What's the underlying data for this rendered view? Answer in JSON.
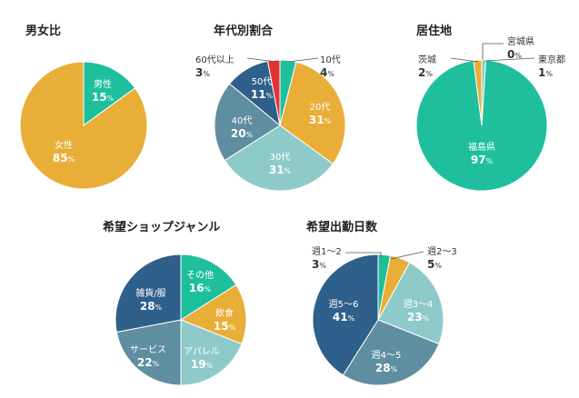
{
  "chart_data": [
    {
      "type": "pie",
      "title": "男女比",
      "slices": [
        {
          "label": "男性",
          "value": 15,
          "color": "#1fbf9d"
        },
        {
          "label": "女性",
          "value": 85,
          "color": "#e9ae38"
        }
      ]
    },
    {
      "type": "pie",
      "title": "年代別割合",
      "slices": [
        {
          "label": "10代",
          "value": 4,
          "color": "#1fbf9d"
        },
        {
          "label": "20代",
          "value": 31,
          "color": "#e9ae38"
        },
        {
          "label": "30代",
          "value": 31,
          "color": "#8fcaca"
        },
        {
          "label": "40代",
          "value": 20,
          "color": "#5f8ea0"
        },
        {
          "label": "50代",
          "value": 11,
          "color": "#2f5f8b"
        },
        {
          "label": "60代以上",
          "value": 3,
          "color": "#e33434"
        }
      ]
    },
    {
      "type": "pie",
      "title": "居住地",
      "slices": [
        {
          "label": "宮城県",
          "value": 0,
          "color": "#5f8ea0"
        },
        {
          "label": "東京都",
          "value": 1,
          "color": "#8fcaca"
        },
        {
          "label": "福島県",
          "value": 97,
          "color": "#1fbf9d"
        },
        {
          "label": "茨城",
          "value": 2,
          "color": "#e9ae38"
        }
      ]
    },
    {
      "type": "pie",
      "title": "希望ショップジャンル",
      "slices": [
        {
          "label": "その他",
          "value": 16,
          "color": "#1fbf9d"
        },
        {
          "label": "飲食",
          "value": 15,
          "color": "#e9ae38"
        },
        {
          "label": "アパレル",
          "value": 19,
          "color": "#8fcaca"
        },
        {
          "label": "サービス",
          "value": 22,
          "color": "#5f8ea0"
        },
        {
          "label": "雑貨/服",
          "value": 28,
          "color": "#2f5f8b"
        }
      ]
    },
    {
      "type": "pie",
      "title": "希望出勤日数",
      "slices": [
        {
          "label": "週1～2",
          "value": 3,
          "color": "#1fbf9d"
        },
        {
          "label": "週2～3",
          "value": 5,
          "color": "#e9ae38"
        },
        {
          "label": "週3～4",
          "value": 23,
          "color": "#8fcaca"
        },
        {
          "label": "週4～5",
          "value": 28,
          "color": "#5f8ea0"
        },
        {
          "label": "週5～6",
          "value": 41,
          "color": "#2f5f8b"
        }
      ]
    }
  ],
  "percent_unit": "%"
}
